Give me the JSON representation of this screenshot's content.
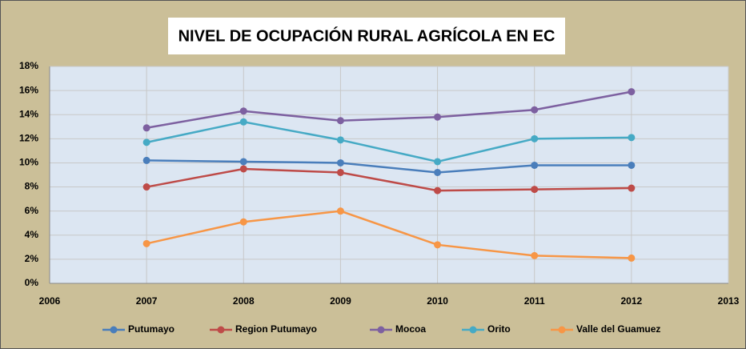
{
  "chart_data": {
    "type": "line",
    "title": "NIVEL DE OCUPACIÓN RURAL AGRÍCOLA EN EC",
    "x": [
      2007,
      2008,
      2009,
      2010,
      2011,
      2012
    ],
    "xlim": [
      2006,
      2013
    ],
    "xticks": [
      2006,
      2007,
      2008,
      2009,
      2010,
      2011,
      2012,
      2013
    ],
    "ylim": [
      0,
      18
    ],
    "yticks": [
      {
        "value": 0,
        "label": "0%"
      },
      {
        "value": 2,
        "label": "2%"
      },
      {
        "value": 4,
        "label": "4%"
      },
      {
        "value": 6,
        "label": "6%"
      },
      {
        "value": 8,
        "label": "8%"
      },
      {
        "value": 10,
        "label": "10%"
      },
      {
        "value": 12,
        "label": "12%"
      },
      {
        "value": 14,
        "label": "14%"
      },
      {
        "value": 16,
        "label": "16%"
      },
      {
        "value": 18,
        "label": "18%"
      }
    ],
    "grid": true,
    "legend": "bottom",
    "series": [
      {
        "name": "Putumayo",
        "color": "#4a7ebb",
        "values": [
          10.2,
          10.1,
          10.0,
          9.2,
          9.8,
          9.8
        ]
      },
      {
        "name": "Region Putumayo",
        "color": "#be4b48",
        "values": [
          8.0,
          9.5,
          9.2,
          7.7,
          7.8,
          7.9
        ]
      },
      {
        "name": "Mocoa",
        "color": "#7d60a0",
        "values": [
          12.9,
          14.3,
          13.5,
          13.8,
          14.4,
          15.9
        ]
      },
      {
        "name": "Orito",
        "color": "#46aac5",
        "values": [
          11.7,
          13.4,
          11.9,
          10.1,
          12.0,
          12.1
        ]
      },
      {
        "name": "Valle del Guamuez",
        "color": "#f79646",
        "values": [
          3.3,
          5.1,
          6.0,
          3.2,
          2.3,
          2.1
        ]
      }
    ]
  }
}
